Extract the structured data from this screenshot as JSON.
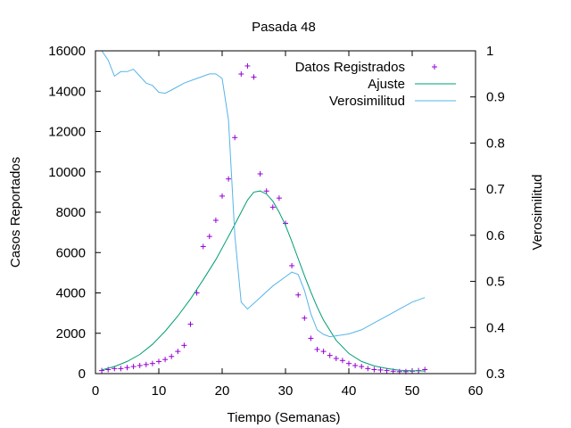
{
  "chart_data": {
    "type": "line",
    "title": "Pasada 48",
    "xlabel": "Tiempo (Semanas)",
    "ylabel": "Casos Reportados",
    "y2label": "Verosimilitud",
    "xlim": [
      0,
      60
    ],
    "ylim": [
      0,
      16000
    ],
    "y2lim": [
      0.3,
      1.0
    ],
    "x_ticks": [
      "0",
      "10",
      "20",
      "30",
      "40",
      "50",
      "60"
    ],
    "y_ticks": [
      "0",
      "2000",
      "4000",
      "6000",
      "8000",
      "10000",
      "12000",
      "14000",
      "16000"
    ],
    "y2_ticks": [
      "0.3",
      "0.4",
      "0.5",
      "0.6",
      "0.7",
      "0.8",
      "0.9",
      "1"
    ],
    "grid": false,
    "legend_position": "top-right",
    "series": [
      {
        "name": "Datos Registrados",
        "axis": "y",
        "style": "points",
        "color": "#9400d3",
        "x": [
          1,
          2,
          3,
          4,
          5,
          6,
          7,
          8,
          9,
          10,
          11,
          12,
          13,
          14,
          15,
          16,
          17,
          18,
          19,
          20,
          21,
          22,
          23,
          24,
          25,
          26,
          27,
          28,
          29,
          30,
          31,
          32,
          33,
          34,
          35,
          36,
          37,
          38,
          39,
          40,
          41,
          42,
          43,
          44,
          45,
          46,
          47,
          48,
          49,
          50,
          51,
          52
        ],
        "y": [
          150,
          200,
          250,
          250,
          300,
          350,
          400,
          450,
          500,
          600,
          700,
          850,
          1100,
          1400,
          2450,
          4000,
          6300,
          6800,
          7600,
          8800,
          9650,
          11700,
          14850,
          15250,
          14700,
          9900,
          9050,
          8250,
          8700,
          7450,
          5350,
          3900,
          2750,
          1750,
          1200,
          1100,
          900,
          750,
          650,
          500,
          400,
          350,
          250,
          200,
          180,
          150,
          120,
          100,
          100,
          120,
          150,
          200
        ]
      },
      {
        "name": "Ajuste",
        "axis": "y",
        "style": "line",
        "color": "#009e73",
        "x": [
          1,
          3,
          5,
          7,
          9,
          11,
          13,
          15,
          17,
          19,
          21,
          22,
          23,
          24,
          25,
          26,
          27,
          28,
          29,
          30,
          31,
          32,
          33,
          34,
          35,
          36,
          38,
          40,
          42,
          44,
          46,
          48,
          50,
          52
        ],
        "y": [
          180,
          350,
          600,
          950,
          1450,
          2100,
          2850,
          3700,
          4650,
          5650,
          6800,
          7400,
          8000,
          8600,
          9000,
          9050,
          8900,
          8550,
          8000,
          7350,
          6550,
          5700,
          4850,
          4050,
          3300,
          2650,
          1650,
          1000,
          600,
          380,
          250,
          170,
          140,
          130
        ]
      },
      {
        "name": "Verosimilitud",
        "axis": "y2",
        "style": "line",
        "color": "#56b4e9",
        "x": [
          1,
          2,
          3,
          4,
          5,
          6,
          7,
          8,
          9,
          10,
          11,
          12,
          14,
          16,
          18,
          19,
          20,
          21,
          22,
          23,
          24,
          26,
          28,
          30,
          31,
          32,
          33,
          34,
          35,
          36,
          37,
          38,
          40,
          42,
          44,
          46,
          48,
          50,
          52
        ],
        "y": [
          1.0,
          0.98,
          0.945,
          0.955,
          0.955,
          0.96,
          0.945,
          0.93,
          0.925,
          0.91,
          0.908,
          0.915,
          0.93,
          0.94,
          0.95,
          0.95,
          0.94,
          0.85,
          0.6,
          0.455,
          0.44,
          0.465,
          0.49,
          0.51,
          0.52,
          0.515,
          0.48,
          0.43,
          0.395,
          0.385,
          0.38,
          0.382,
          0.386,
          0.395,
          0.41,
          0.425,
          0.44,
          0.455,
          0.465
        ]
      }
    ]
  }
}
